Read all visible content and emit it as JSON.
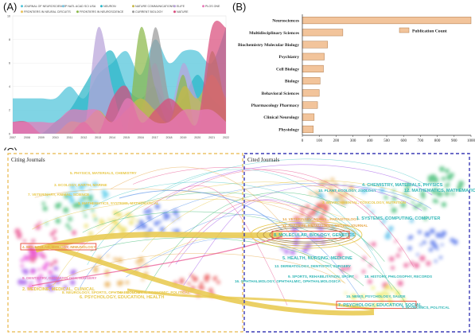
{
  "panels": {
    "a": "(A)",
    "b": "(B)",
    "c": "(C)"
  },
  "chart_data": [
    {
      "type": "area",
      "legend": [
        {
          "name": "JOURNAL OF NEUROSCIENCE",
          "color": "#4fc3d9"
        },
        {
          "name": "P NATL ACAD SCI USA",
          "color": "#7ec8e3"
        },
        {
          "name": "NEURON",
          "color": "#2ab5c8"
        },
        {
          "name": "NATURE COMMUNICATIONS",
          "color": "#c7b84a"
        },
        {
          "name": "ELIFE",
          "color": "#b9a3d9"
        },
        {
          "name": "PLOS ONE",
          "color": "#e87ab8"
        },
        {
          "name": "FRONTIERS IN NEURAL CIRCUITS",
          "color": "#e8c25a"
        },
        {
          "name": "FRONTIERS IN NEUROSCIENCE",
          "color": "#8ab84a"
        },
        {
          "name": "CURRENT BIOLOGY",
          "color": "#9a9a9a"
        },
        {
          "name": "NATURE",
          "color": "#d94c7c"
        }
      ],
      "x": [
        "2007",
        "2008",
        "2009",
        "2010",
        "2011",
        "2012",
        "2013",
        "2014",
        "2015",
        "2016",
        "2017",
        "2018",
        "2019",
        "2020",
        "2021",
        "2022"
      ],
      "y_ticks": [
        "0",
        "2",
        "4",
        "6",
        "8",
        "10"
      ],
      "ylim": [
        0,
        10
      ],
      "series": [
        {
          "name": "JOURNAL OF NEUROSCIENCE",
          "values": [
            3,
            3,
            3,
            3,
            4,
            3,
            5,
            6,
            7,
            5,
            8,
            6,
            7,
            7,
            6,
            9
          ]
        },
        {
          "name": "NEURON",
          "values": [
            0,
            0,
            0,
            1,
            2,
            4,
            6,
            7,
            4,
            3,
            4,
            2,
            3,
            5,
            3,
            2
          ]
        },
        {
          "name": "ELIFE",
          "values": [
            0,
            0,
            0,
            0,
            0,
            0,
            9,
            4,
            0,
            2,
            6,
            2,
            6,
            3,
            2,
            0
          ]
        },
        {
          "name": "FRONTIERS IN NEUROSCIENCE",
          "values": [
            0,
            0,
            0,
            0,
            0,
            0,
            0,
            0,
            0,
            9,
            4,
            1,
            5,
            0,
            7,
            2
          ]
        },
        {
          "name": "CURRENT BIOLOGY",
          "values": [
            0,
            0,
            0,
            0,
            0,
            0,
            0,
            0,
            0,
            0,
            9,
            3,
            0,
            0,
            0,
            0
          ]
        },
        {
          "name": "NATURE COMMUNICATIONS",
          "values": [
            0,
            0,
            0,
            0,
            1,
            1,
            2,
            1,
            2,
            3,
            2,
            1,
            4,
            3,
            5,
            3
          ]
        },
        {
          "name": "NATURE",
          "values": [
            1,
            1,
            0,
            0,
            0,
            1,
            0,
            3,
            4,
            1,
            2,
            3,
            2,
            1,
            9,
            9
          ]
        },
        {
          "name": "PLOS ONE",
          "values": [
            1,
            1,
            1,
            1,
            2,
            2,
            2,
            1,
            3,
            2,
            1,
            1,
            2,
            2,
            2,
            1
          ]
        }
      ]
    },
    {
      "type": "bar",
      "orientation": "horizontal",
      "categories": [
        "Neurosciences",
        "Multidisciplinary Sciences",
        "Biochemistry Molecular Biology",
        "Psychiatry",
        "Cell Biology",
        "Biology",
        "Behavioral Sciences",
        "Pharmacology Pharmacy",
        "Clinical Neurology",
        "Physiology"
      ],
      "values": [
        1000,
        240,
        150,
        130,
        125,
        105,
        100,
        90,
        70,
        65
      ],
      "x_ticks": [
        "0",
        "100",
        "200",
        "300",
        "400",
        "500",
        "600",
        "700",
        "800",
        "900",
        "1000"
      ],
      "xlim": [
        0,
        1000
      ],
      "legend": "Publication Count",
      "color": "#f2c49b"
    }
  ],
  "overlay": {
    "citing_title": "Citing Journals",
    "cited_title": "Cited Journals",
    "citing_clusters": [
      "5. PHYSICS, MATERIALS, CHEMISTRY",
      "3. ECOLOGY, EARTH, MARINE",
      "7. VETERINARY, ANIMAL, SCIENCE",
      "1. MATHEMATICS, SYSTEMS, MATHEMATICAL",
      "4. MOLECULAR, BIOLOGY, IMMUNOLOGY",
      "9. DENTISTRY, DERMATOLOGY, SURGERY",
      "2. MEDICINE, MEDICAL, CLINICAL",
      "8. NEUROLOGY, SPORTS, OPHTHALMOLOGY",
      "10. ECONOMICS, ECONOMIC, POLITICAL",
      "6. PSYCHOLOGY, EDUCATION, HEALTH"
    ],
    "cited_clusters": [
      "4. CHEMISTRY, MATERIALS, PHYSICS",
      "12. MATHEMATICS, MATHEMATICAL, MECHANICS",
      "10. PLANT, ECOLOGY, ZOOLOGY",
      "3. ENVIRONMENTAL, TOXICOLOGY, NUTRITION",
      "14. VETERINARY, ANIMAL, PARASITOLOGY",
      "1. SYSTEMS, COMPUTING, COMPUTER",
      "11. SYSTEMS, METALLURGY, MEDIAN-JOURNAL",
      "8. MOLECULAR, BIOLOGY, GENETICS",
      "5. HEALTH, NURSING, MEDICINE",
      "13. DERMATOLOGY, DENTISTRY, SURGERY",
      "9. SPORTS, REHABILITATION, SPORT",
      "16. OPHTHALMOLOGY, OPHTHALMIC, OPHTHALMOLOGICA",
      "18. HISTORY, PHILOSOPHY, RECORDS",
      "15. NEWS, PSYCHOLOGY, SAUDE",
      "7. PSYCHOLOGY, EDUCATION, SOCIAL",
      "2. ECONOMICS, POLITICAL"
    ]
  }
}
